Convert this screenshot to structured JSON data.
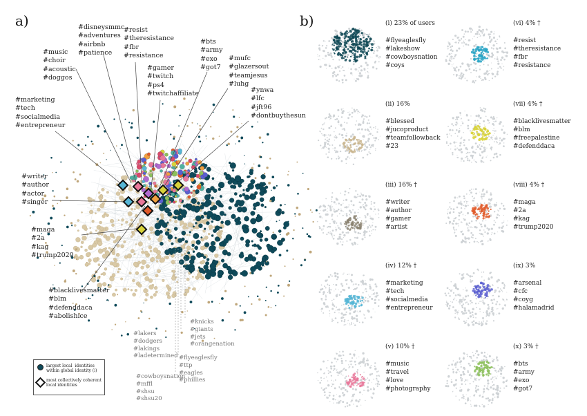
{
  "panel_a": {
    "letter": "a)",
    "labels": {
      "music": "#music\n#choir\n#acoustic\n#doggos",
      "disney": "#disneysmmc\n#adventures\n#airbnb\n#patience",
      "resist": "#resist\n#theresistance\n#fbr\n#resistance",
      "bts": "#bts\n#army\n#exo\n#got7",
      "gamer": "#gamer\n#twitch\n#ps4\n#twitchaffiliate",
      "mufc": "#mufc\n#glazersout\n#teamjesus\n#luhg",
      "ynwa": "#ynwa\n#lfc\n#jft96\n#dontbuythesun",
      "marketing": "#marketing\n#tech\n#socialmedia\n#entrepreneur",
      "writer": "#writer\n#author\n#actor\n#singer",
      "maga": "#maga\n#2a\n#kag\n#trump2020",
      "blm": "#blacklivesmatter\n#blm\n#defenddaca\n#abolishice",
      "knicks": "#knicks\n#giants\n#jets\n#orangenation",
      "lakers": "#lakers\n#dodgers\n#lakings\n#ladetermined",
      "eagles": "#flyeaglesfly\n#ttp\n#eagles\n#phillies",
      "cowboys": "#cowboysnation\n#mffl\n#shsu\n#shsu20"
    },
    "legend": {
      "dot_label": "largest local  identities\nwithin global identity (i)",
      "diamond_label": "most collectively coherent\nlocal identities"
    }
  },
  "panel_b": {
    "letter": "b)",
    "subplots": [
      {
        "caption": "(i) 23% of users\n\n#flyeaglesfly\n#lakeshow\n#cowboysnation\n#coys",
        "color": "#0d4654"
      },
      {
        "caption": "(vi) 4% †\n\n#resist\n#theresistance\n#fbr\n#resistance",
        "color": "#27a3c4"
      },
      {
        "caption": "(ii) 16%\n\n#blessed\n#jucoproduct\n#teamfollowback\n#23",
        "color": "#c9b58e"
      },
      {
        "caption": "(vii) 4% †\n\n#blacklivesmatter\n#blm\n#freepalestine\n#defenddaca",
        "color": "#d8d23a"
      },
      {
        "caption": "(iii) 16% †\n\n#writer\n#author\n#gamer\n#artist",
        "color": "#8a8170"
      },
      {
        "caption": "(viii) 4% †\n\n#maga\n#2a\n#kag\n#trump2020",
        "color": "#e05a2a"
      },
      {
        "caption": "(iv) 12% †\n\n#marketing\n#tech\n#socialmedia\n#entrepreneur",
        "color": "#56b6d6"
      },
      {
        "caption": "(ix) 3%\n\n#arsenal\n#cfc\n#coyg\n#halamadrid",
        "color": "#5a5fd0"
      },
      {
        "caption": "(v) 10% †\n\n#music\n#travel\n#love\n#photography",
        "color": "#e8789a"
      },
      {
        "caption": "(x) 3% †\n\n#bts\n#army\n#exo\n#got7",
        "color": "#8cc05a"
      }
    ]
  },
  "colors": {
    "dark_teal": "#0f4a5a",
    "beige": "#d9c9a6",
    "gray_node": "#c9cdd0"
  }
}
